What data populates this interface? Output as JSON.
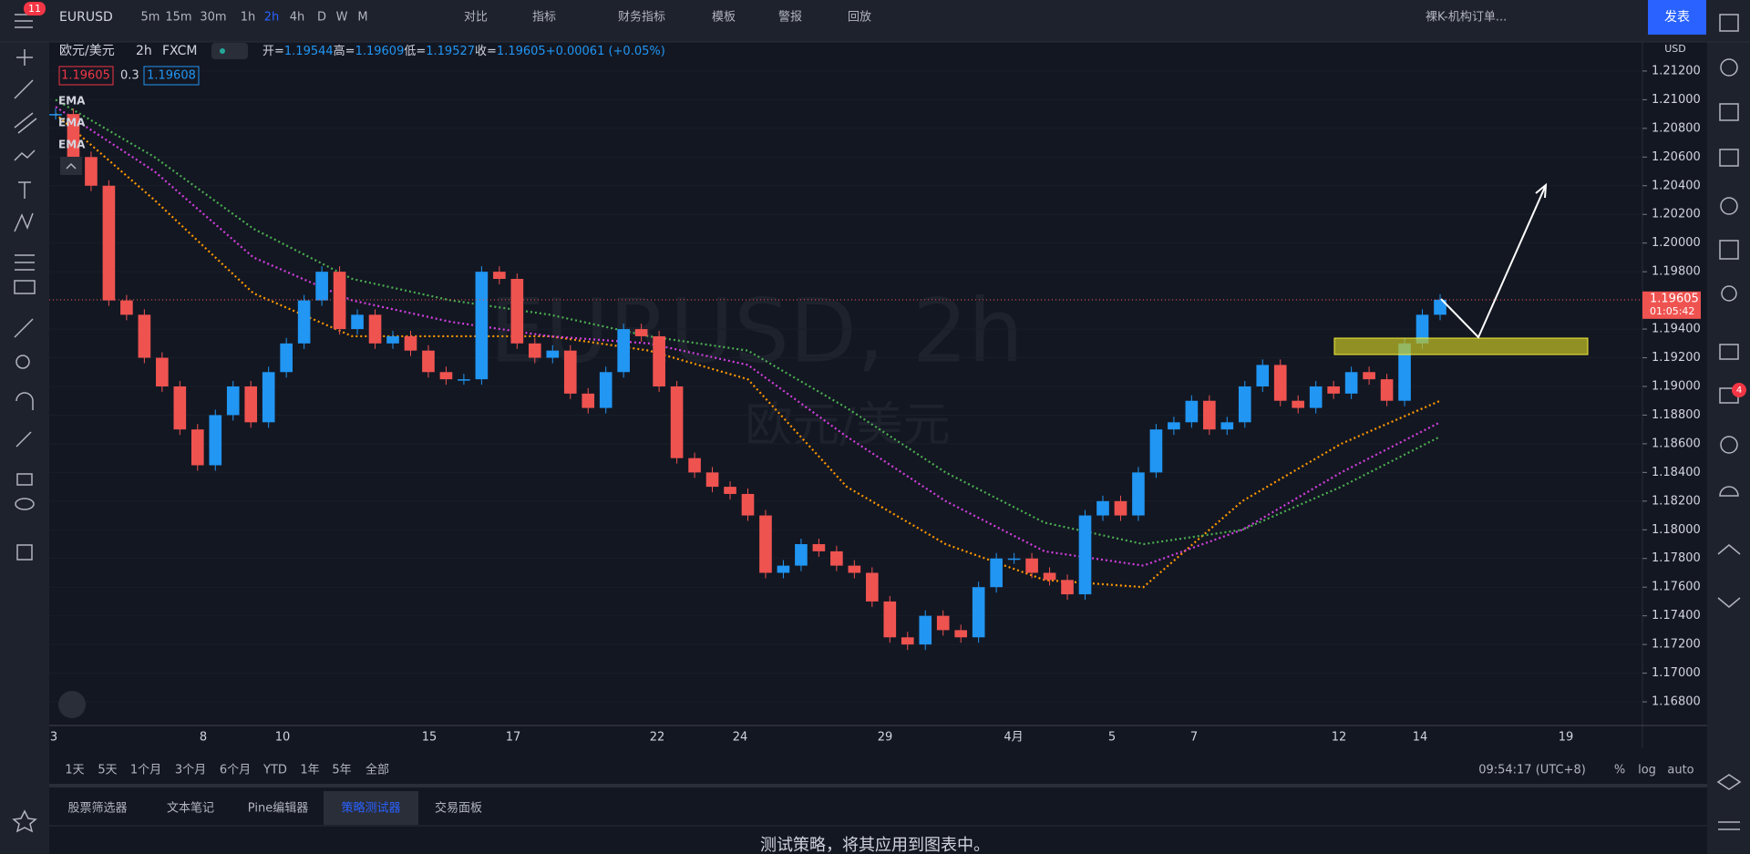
{
  "toolbar": {
    "badge": "11",
    "symbol": "EURUSD",
    "intervals": [
      "5m",
      "15m",
      "30m",
      "1h",
      "2h",
      "4h",
      "D",
      "W",
      "M"
    ],
    "active_interval": 4,
    "buttons": [
      "对比",
      "指标",
      "财务指标",
      "模板",
      "警报",
      "回放"
    ],
    "template": "裸K-机构订单...",
    "publish": "发表"
  },
  "legend": {
    "name": "欧元/美元",
    "interval": "2h",
    "source": "FXCM",
    "ohlc": [
      {
        "label": "开=",
        "value": "1.19544"
      },
      {
        "label": "高=",
        "value": "1.19609"
      },
      {
        "label": "低=",
        "value": "1.19527"
      },
      {
        "label": "收=",
        "value": "1.19605"
      }
    ],
    "change": "+0.00061 (+0.05%)",
    "bid": "1.19605",
    "spread": "0.3",
    "ask": "1.19608",
    "indicators": [
      "EMA",
      "EMA",
      "EMA"
    ]
  },
  "chart": {
    "currency": "USD",
    "watermark": "EURUSD, 2h",
    "watermark_sub": "欧元/美元",
    "ylim": [
      1.16635,
      1.21403
    ],
    "price_ticks": [
      {
        "value": 1.212,
        "label": "1.21200"
      },
      {
        "value": 1.21,
        "label": "1.21000"
      },
      {
        "value": 1.208,
        "label": "1.20800"
      },
      {
        "value": 1.206,
        "label": "1.20600"
      },
      {
        "value": 1.204,
        "label": "1.20400"
      },
      {
        "value": 1.202,
        "label": "1.20200"
      },
      {
        "value": 1.2,
        "label": "1.20000"
      },
      {
        "value": 1.198,
        "label": "1.19800"
      },
      {
        "value": 1.196,
        "label": "1.19600"
      },
      {
        "value": 1.194,
        "label": "1.19400"
      },
      {
        "value": 1.192,
        "label": "1.19200"
      },
      {
        "value": 1.19,
        "label": "1.19000"
      },
      {
        "value": 1.188,
        "label": "1.18800"
      },
      {
        "value": 1.186,
        "label": "1.18600"
      },
      {
        "value": 1.184,
        "label": "1.18400"
      },
      {
        "value": 1.182,
        "label": "1.18200"
      },
      {
        "value": 1.18,
        "label": "1.18000"
      },
      {
        "value": 1.178,
        "label": "1.17800"
      },
      {
        "value": 1.176,
        "label": "1.17600"
      },
      {
        "value": 1.174,
        "label": "1.17400"
      },
      {
        "value": 1.172,
        "label": "1.17200"
      },
      {
        "value": 1.17,
        "label": "1.17000"
      },
      {
        "value": 1.168,
        "label": "1.16800"
      }
    ],
    "time_labels": [
      "3",
      "8",
      "10",
      "15",
      "17",
      "22",
      "24",
      "29",
      "4月",
      "5",
      "7",
      "12",
      "14",
      "19"
    ],
    "current_price": {
      "value": 1.19605,
      "label": "1.19605"
    },
    "countdown": "01:05:42",
    "closes": [
      1.209,
      1.206,
      1.204,
      1.196,
      1.195,
      1.192,
      1.19,
      1.187,
      1.1845,
      1.188,
      1.19,
      1.1875,
      1.191,
      1.193,
      1.196,
      1.198,
      1.194,
      1.195,
      1.193,
      1.1935,
      1.1925,
      1.191,
      1.1905,
      1.1905,
      1.198,
      1.1975,
      1.193,
      1.192,
      1.1925,
      1.1895,
      1.1885,
      1.191,
      1.194,
      1.1935,
      1.19,
      1.185,
      1.184,
      1.183,
      1.1825,
      1.181,
      1.177,
      1.1775,
      1.179,
      1.1785,
      1.1775,
      1.177,
      1.175,
      1.1725,
      1.172,
      1.174,
      1.173,
      1.1725,
      1.176,
      1.178,
      1.178,
      1.177,
      1.1765,
      1.1755,
      1.181,
      1.182,
      1.181,
      1.184,
      1.187,
      1.1875,
      1.189,
      1.187,
      1.1875,
      1.19,
      1.1915,
      1.189,
      1.1885,
      1.19,
      1.1895,
      1.191,
      1.1905,
      1.189,
      1.193,
      1.195,
      1.19605
    ],
    "ema": [
      {
        "color": "#ff9800",
        "values": [
          1.209,
          1.203,
          1.1965,
          1.1935,
          1.1935,
          1.1935,
          1.1925,
          1.1905,
          1.183,
          1.179,
          1.1765,
          1.176,
          1.182,
          1.186,
          1.189
        ]
      },
      {
        "color": "#d43fe0",
        "values": [
          1.2095,
          1.205,
          1.199,
          1.196,
          1.1945,
          1.1935,
          1.193,
          1.1915,
          1.1865,
          1.182,
          1.1785,
          1.1775,
          1.18,
          1.184,
          1.1875
        ]
      },
      {
        "color": "#4caf50",
        "values": [
          1.21,
          1.206,
          1.201,
          1.1975,
          1.196,
          1.195,
          1.1935,
          1.1925,
          1.1885,
          1.184,
          1.1805,
          1.179,
          1.18,
          1.183,
          1.1865
        ]
      }
    ]
  },
  "range_bar": {
    "ranges": [
      "1天",
      "5天",
      "1个月",
      "3个月",
      "6个月",
      "YTD",
      "1年",
      "5年",
      "全部"
    ],
    "clock": "09:54:17 (UTC+8)",
    "options": [
      "%",
      "log",
      "auto"
    ]
  },
  "panel": {
    "tabs": [
      "股票筛选器",
      "文本笔记",
      "Pine编辑器",
      "策略测试器",
      "交易面板"
    ],
    "active_tab": 3,
    "message": "测试策略，将其应用到图表中。"
  },
  "sidebar": {
    "badge": "4"
  }
}
